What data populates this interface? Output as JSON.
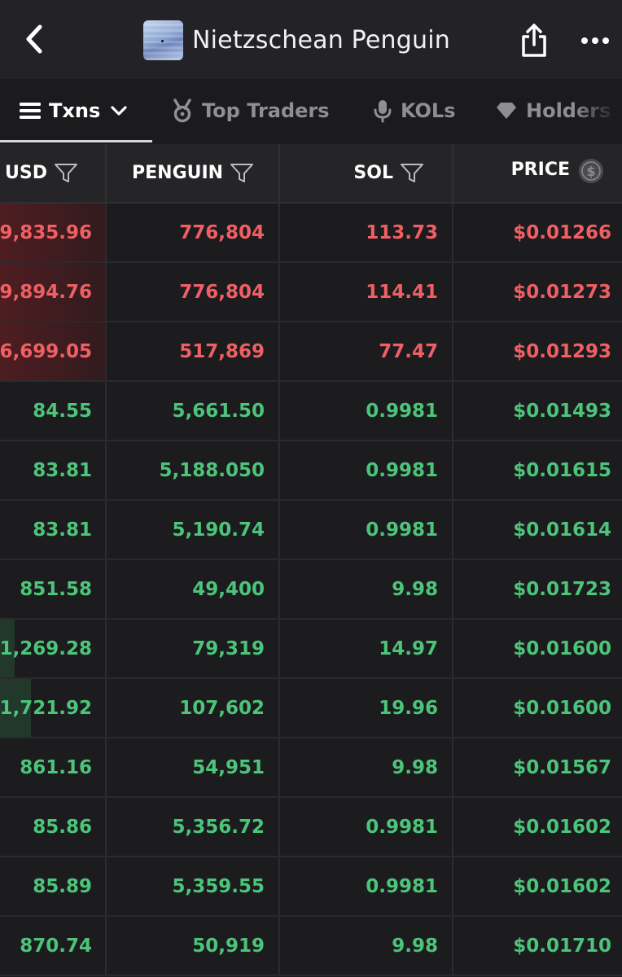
{
  "header": {
    "title": "Nietzschean Penguin"
  },
  "tabs": [
    {
      "label": "Txns",
      "icon": "list-icon",
      "active": true
    },
    {
      "label": "Top Traders",
      "icon": "medal-icon",
      "active": false
    },
    {
      "label": "KOLs",
      "icon": "microphone-icon",
      "active": false
    },
    {
      "label": "Holders",
      "icon": "diamond-icon",
      "active": false
    }
  ],
  "table": {
    "columns": {
      "usd": "USD",
      "token": "PENGUIN",
      "sol": "SOL",
      "price": "PRICE"
    },
    "rows": [
      {
        "type": "sell",
        "usd": "9,835.96",
        "token": "776,804",
        "sol": "113.73",
        "price": "$0.01266"
      },
      {
        "type": "sell",
        "usd": "9,894.76",
        "token": "776,804",
        "sol": "114.41",
        "price": "$0.01273"
      },
      {
        "type": "sell",
        "usd": "6,699.05",
        "token": "517,869",
        "sol": "77.47",
        "price": "$0.01293"
      },
      {
        "type": "buy",
        "usd": "84.55",
        "token": "5,661.50",
        "sol": "0.9981",
        "price": "$0.01493"
      },
      {
        "type": "buy",
        "usd": "83.81",
        "token": "5,188.050",
        "sol": "0.9981",
        "price": "$0.01615"
      },
      {
        "type": "buy",
        "usd": "83.81",
        "token": "5,190.74",
        "sol": "0.9981",
        "price": "$0.01614"
      },
      {
        "type": "buy",
        "usd": "851.58",
        "token": "49,400",
        "sol": "9.98",
        "price": "$0.01723"
      },
      {
        "type": "buy",
        "usd": "1,269.28",
        "token": "79,319",
        "sol": "14.97",
        "price": "$0.01600"
      },
      {
        "type": "buy",
        "usd": "1,721.92",
        "token": "107,602",
        "sol": "19.96",
        "price": "$0.01600"
      },
      {
        "type": "buy",
        "usd": "861.16",
        "token": "54,951",
        "sol": "9.98",
        "price": "$0.01567"
      },
      {
        "type": "buy",
        "usd": "85.86",
        "token": "5,356.72",
        "sol": "0.9981",
        "price": "$0.01602"
      },
      {
        "type": "buy",
        "usd": "85.89",
        "token": "5,359.55",
        "sol": "0.9981",
        "price": "$0.01602"
      },
      {
        "type": "buy",
        "usd": "870.74",
        "token": "50,919",
        "sol": "9.98",
        "price": "$0.01710"
      }
    ]
  }
}
